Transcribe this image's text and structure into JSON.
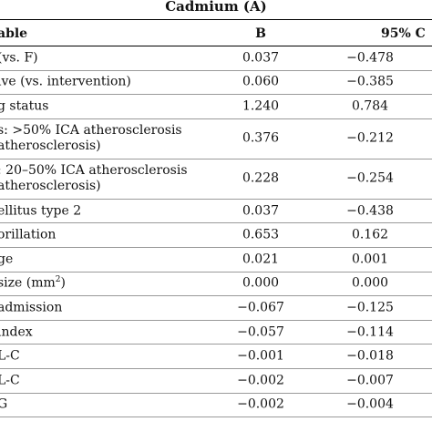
{
  "table": {
    "title": "Cadmium (A)",
    "headers": {
      "variable": "able",
      "b": "B",
      "ci": "95% C"
    },
    "rows": [
      {
        "variable": "(vs. F)",
        "b": "0.037",
        "ci": "−0.478"
      },
      {
        "variable": "ive (vs. intervention)",
        "b": "0.060",
        "ci": "−0.385"
      },
      {
        "variable": "g status",
        "b": "1.240",
        "ci": "0.784"
      },
      {
        "variable": "s: >50% ICA atherosclerosis\natherosclerosis)",
        "b": "0.376",
        "ci": "−0.212"
      },
      {
        "variable": ": 20–50% ICA atherosclerosis\natherosclerosis)",
        "b": "0.228",
        "ci": "−0.254"
      },
      {
        "variable": "ellitus type 2",
        "b": "0.037",
        "ci": "−0.438"
      },
      {
        "variable": "orillation",
        "b": "0.653",
        "ci": "0.162"
      },
      {
        "variable": "ge",
        "b": "0.021",
        "ci": "0.001"
      },
      {
        "variable": "size (mm",
        "variable_sup": "2",
        "variable_suffix": ")",
        "b": "0.000",
        "ci": "0.000"
      },
      {
        "variable": "admission",
        "b": "−0.067",
        "ci": "−0.125"
      },
      {
        "variable": "index",
        "b": "−0.057",
        "ci": "−0.114"
      },
      {
        "variable": "L-C",
        "b": "−0.001",
        "ci": "−0.018"
      },
      {
        "variable": "L-C",
        "b": "−0.002",
        "ci": "−0.007"
      },
      {
        "variable": "G",
        "b": "−0.002",
        "ci": "−0.004"
      }
    ]
  }
}
